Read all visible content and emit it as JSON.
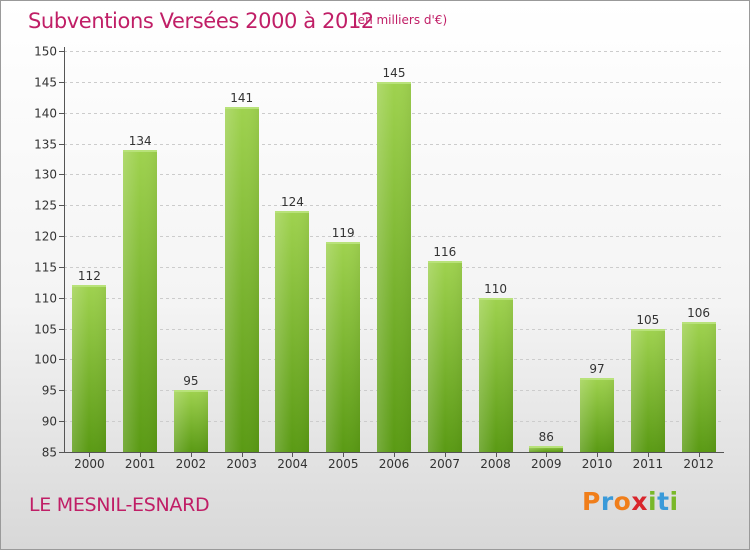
{
  "title": "Subventions Versées 2000 à 2012",
  "unit_note": "(en milliers d'€)",
  "commune": "LE MESNIL-ESNARD",
  "logo": {
    "text": "Proxiti",
    "letters": [
      {
        "ch": "P",
        "color": "#f07e1a"
      },
      {
        "ch": "r",
        "color": "#3a9ad9"
      },
      {
        "ch": "o",
        "color": "#f07e1a"
      },
      {
        "ch": "x",
        "color": "#d9262c"
      },
      {
        "ch": "i",
        "color": "#79b829"
      },
      {
        "ch": "t",
        "color": "#3a9ad9"
      },
      {
        "ch": "i",
        "color": "#79b829"
      }
    ]
  },
  "colors": {
    "accent": "#c01e66",
    "bar_top": "#9fd24f",
    "bar_bottom": "#5a9a14",
    "grid": "#cccccc",
    "axis": "#555555"
  },
  "chart_data": {
    "type": "bar",
    "categories": [
      "2000",
      "2001",
      "2002",
      "2003",
      "2004",
      "2005",
      "2006",
      "2007",
      "2008",
      "2009",
      "2010",
      "2011",
      "2012"
    ],
    "values": [
      112,
      134,
      95,
      141,
      124,
      119,
      145,
      116,
      110,
      86,
      97,
      105,
      106
    ],
    "title": "Subventions Versées 2000 à 2012",
    "unit": "(en milliers d'€)",
    "xlabel": "",
    "ylabel": "",
    "ylim": [
      85,
      150
    ],
    "yticks": [
      85,
      90,
      95,
      100,
      105,
      110,
      115,
      120,
      125,
      130,
      135,
      140,
      145,
      150
    ],
    "grid": true,
    "grid_style": "dashed horizontal"
  }
}
